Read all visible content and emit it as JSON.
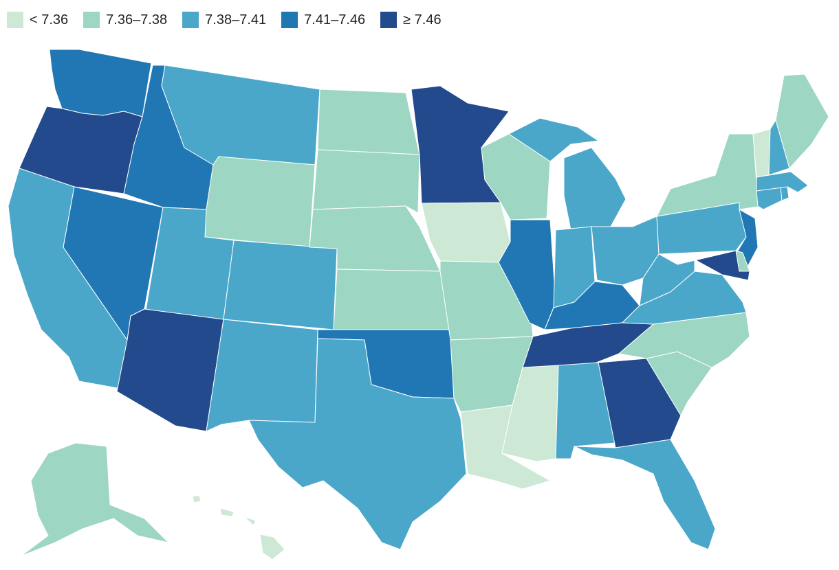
{
  "legend": [
    {
      "label": "< 7.36",
      "color": "#cde9d6"
    },
    {
      "label": "7.36–7.38",
      "color": "#9dd6c3"
    },
    {
      "label": "7.38–7.41",
      "color": "#4aa7ca"
    },
    {
      "label": "7.41–7.46",
      "color": "#2177b4"
    },
    {
      "label": "≥ 7.46",
      "color": "#234a8c"
    }
  ],
  "states": {
    "WA": 3,
    "OR": 4,
    "CA": 2,
    "NV": 3,
    "ID": 3,
    "MT": 2,
    "WY": 1,
    "UT": 2,
    "AZ": 4,
    "CO": 2,
    "NM": 2,
    "ND": 1,
    "SD": 1,
    "NE": 1,
    "KS": 1,
    "OK": 3,
    "TX": 2,
    "MN": 4,
    "IA": 0,
    "MO": 1,
    "AR": 1,
    "LA": 0,
    "WI": 1,
    "IL": 3,
    "MI": 2,
    "IN": 2,
    "OH": 2,
    "KY": 3,
    "TN": 4,
    "MS": 0,
    "AL": 2,
    "GA": 4,
    "FL": 2,
    "SC": 1,
    "NC": 1,
    "VA": 2,
    "WV": 2,
    "PA": 2,
    "NY": 1,
    "NJ": 3,
    "DE": 1,
    "MD": 4,
    "CT": 2,
    "RI": 2,
    "MA": 2,
    "VT": 0,
    "NH": 2,
    "ME": 1,
    "AK": 1,
    "HI": 0
  }
}
